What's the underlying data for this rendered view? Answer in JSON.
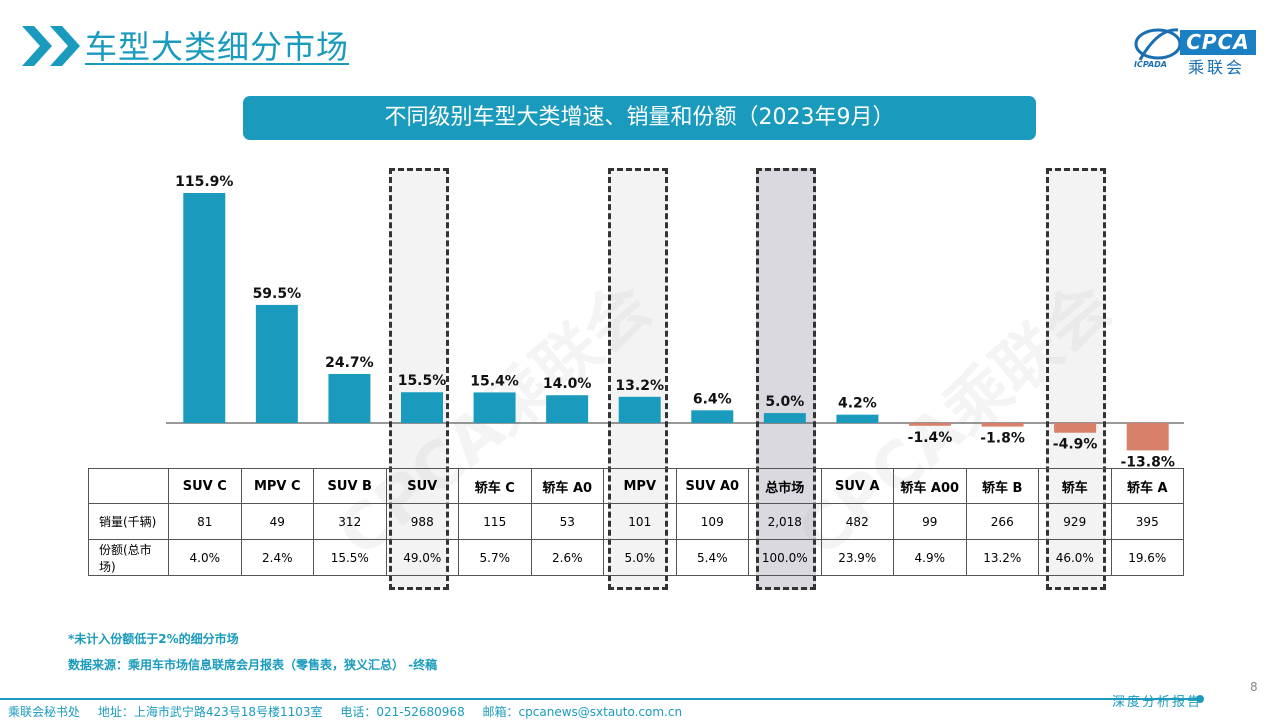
{
  "header": {
    "title": "车型大类细分市场",
    "logo_en": "CPCA",
    "logo_cn": "乘联会",
    "logo_sub": "ICPADA"
  },
  "banner": "不同级别车型大类增速、销量和份额（2023年9月）",
  "watermark": "CPCA乘联会",
  "colors": {
    "accent": "#1a9bbd",
    "positive_bar": "#1a9bbd",
    "negative_bar": "#d9806a"
  },
  "chart_data": {
    "type": "bar",
    "title": "不同级别车型大类增速、销量和份额（2023年9月）",
    "categories": [
      "SUV C",
      "MPV C",
      "SUV B",
      "SUV",
      "轿车 C",
      "轿车 A0",
      "MPV",
      "SUV A0",
      "总市场",
      "SUV A",
      "轿车 A00",
      "轿车 B",
      "轿车",
      "轿车 A"
    ],
    "series": [
      {
        "values": [
          115.9,
          59.5,
          24.7,
          15.5,
          15.4,
          14.0,
          13.2,
          6.4,
          5.0,
          4.2,
          -1.4,
          -1.8,
          -4.9,
          -13.8
        ]
      }
    ],
    "data_labels": [
      "115.9%",
      "59.5%",
      "24.7%",
      "15.5%",
      "15.4%",
      "14.0%",
      "13.2%",
      "6.4%",
      "5.0%",
      "4.2%",
      "-1.4%",
      "-1.8%",
      "-4.9%",
      "-13.8%"
    ],
    "highlighted": [
      "SUV",
      "MPV",
      "总市场",
      "轿车"
    ],
    "ylim": [
      -15,
      120
    ],
    "grid": false,
    "legend": "none"
  },
  "table": {
    "rows": [
      {
        "label": "销量(千辆)",
        "values": [
          "81",
          "49",
          "312",
          "988",
          "115",
          "53",
          "101",
          "109",
          "2,018",
          "482",
          "99",
          "266",
          "929",
          "395"
        ]
      },
      {
        "label": "份额(总市场)",
        "values": [
          "4.0%",
          "2.4%",
          "15.5%",
          "49.0%",
          "5.7%",
          "2.6%",
          "5.0%",
          "5.4%",
          "100.0%",
          "23.9%",
          "4.9%",
          "13.2%",
          "46.0%",
          "19.6%"
        ]
      }
    ]
  },
  "notes": [
    "*未计入份额低于2%的细分市场",
    "数据来源：乘用车市场信息联席会月报表（零售表，狭义汇总）  -终稿"
  ],
  "footer": {
    "org": "乘联会秘书处",
    "address": "地址：上海市武宁路423号18号楼1103室",
    "phone": "电话：021-52680968",
    "email": "邮箱：cpcanews@sxtauto.com.cn",
    "report": "深度分析报告",
    "page": "8"
  }
}
